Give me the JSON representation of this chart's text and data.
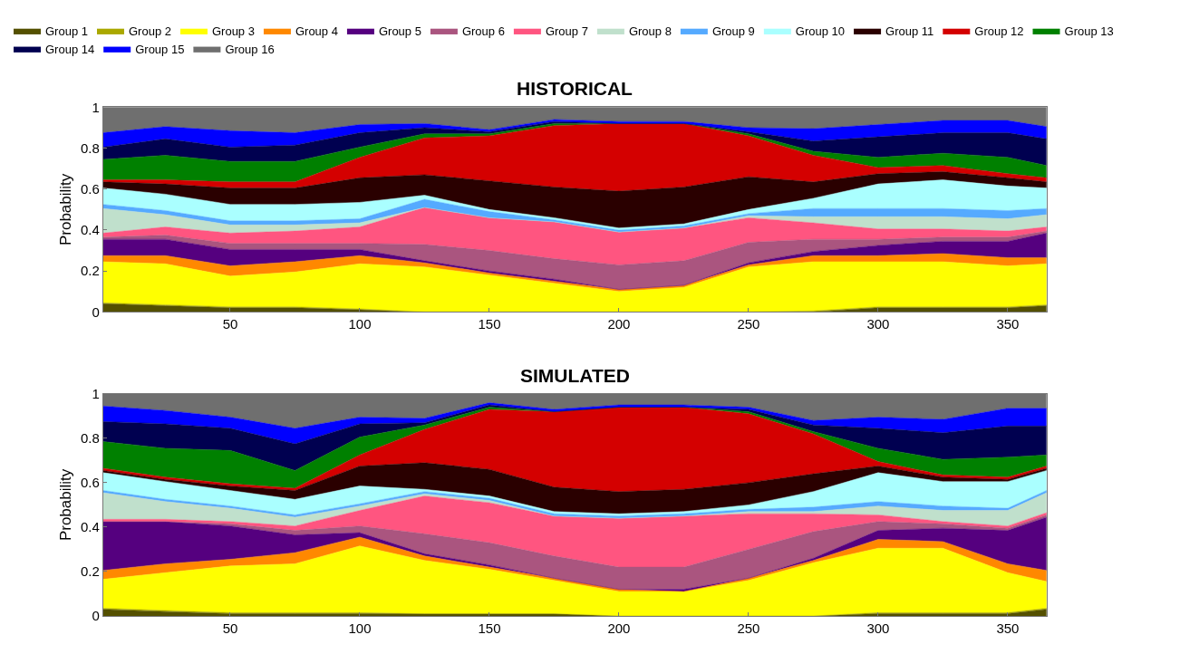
{
  "chart_data": [
    {
      "type": "area",
      "stacked": true,
      "title": "HISTORICAL",
      "ylabel": "Probability",
      "legend": "top",
      "xlim": [
        1,
        365
      ],
      "xticks": [
        50,
        100,
        150,
        200,
        250,
        300,
        350
      ],
      "ylim": [
        0,
        1
      ],
      "yticks": [
        0,
        0.2,
        0.4,
        0.6,
        0.8,
        1
      ],
      "x": [
        1,
        25,
        50,
        75,
        100,
        125,
        150,
        175,
        200,
        225,
        250,
        275,
        300,
        325,
        350,
        365
      ],
      "series": [
        {
          "name": "Group 1",
          "color": "#545000",
          "values": [
            0.04,
            0.03,
            0.02,
            0.02,
            0.01,
            0,
            0,
            0,
            0,
            0,
            0,
            0,
            0.02,
            0.02,
            0.02,
            0.03
          ]
        },
        {
          "name": "Group 2",
          "color": "#aaa800",
          "values": [
            0.005,
            0.005,
            0.005,
            0.005,
            0.005,
            0,
            0,
            0,
            0,
            0,
            0,
            0.005,
            0.005,
            0.005,
            0.005,
            0.005
          ]
        },
        {
          "name": "Group 3",
          "color": "#ffff00",
          "values": [
            0.2,
            0.2,
            0.15,
            0.17,
            0.22,
            0.22,
            0.18,
            0.14,
            0.1,
            0.12,
            0.22,
            0.24,
            0.22,
            0.22,
            0.2,
            0.2
          ]
        },
        {
          "name": "Group 4",
          "color": "#ff8800",
          "values": [
            0.03,
            0.04,
            0.05,
            0.05,
            0.04,
            0.02,
            0.01,
            0.01,
            0.01,
            0.01,
            0.01,
            0.03,
            0.03,
            0.04,
            0.04,
            0.03
          ]
        },
        {
          "name": "Group 5",
          "color": "#55007f",
          "values": [
            0.08,
            0.08,
            0.08,
            0.06,
            0.03,
            0.01,
            0.01,
            0.01,
            0,
            0,
            0.01,
            0.02,
            0.05,
            0.06,
            0.08,
            0.12
          ]
        },
        {
          "name": "Group 6",
          "color": "#aa557f",
          "values": [
            0.01,
            0.02,
            0.03,
            0.03,
            0.03,
            0.08,
            0.1,
            0.1,
            0.12,
            0.12,
            0.1,
            0.06,
            0.03,
            0.02,
            0.02,
            0.01
          ]
        },
        {
          "name": "Group 7",
          "color": "#ff5580",
          "values": [
            0.02,
            0.04,
            0.05,
            0.06,
            0.08,
            0.18,
            0.16,
            0.18,
            0.16,
            0.16,
            0.12,
            0.08,
            0.05,
            0.04,
            0.03,
            0.02
          ]
        },
        {
          "name": "Group 8",
          "color": "#c0e0cc",
          "values": [
            0.12,
            0.06,
            0.04,
            0.03,
            0.02,
            0,
            0,
            0,
            0,
            0,
            0.01,
            0.03,
            0.06,
            0.06,
            0.06,
            0.06
          ]
        },
        {
          "name": "Group 9",
          "color": "#55aaff",
          "values": [
            0.02,
            0.02,
            0.02,
            0.02,
            0.02,
            0.04,
            0.03,
            0.01,
            0.01,
            0.01,
            0.01,
            0.04,
            0.04,
            0.04,
            0.04,
            0.03
          ]
        },
        {
          "name": "Group 10",
          "color": "#aaffff",
          "values": [
            0.08,
            0.08,
            0.08,
            0.08,
            0.08,
            0.02,
            0.01,
            0.01,
            0.01,
            0.01,
            0.02,
            0.05,
            0.12,
            0.14,
            0.12,
            0.1
          ]
        },
        {
          "name": "Group 11",
          "color": "#2a0000",
          "values": [
            0.03,
            0.05,
            0.08,
            0.08,
            0.12,
            0.1,
            0.14,
            0.15,
            0.18,
            0.18,
            0.16,
            0.08,
            0.05,
            0.04,
            0.04,
            0.03
          ]
        },
        {
          "name": "Group 12",
          "color": "#d40000",
          "values": [
            0.01,
            0.02,
            0.03,
            0.03,
            0.1,
            0.18,
            0.22,
            0.3,
            0.33,
            0.31,
            0.2,
            0.13,
            0.03,
            0.03,
            0.02,
            0.02
          ]
        },
        {
          "name": "Group 13",
          "color": "#008000",
          "values": [
            0.1,
            0.12,
            0.1,
            0.1,
            0.05,
            0.02,
            0.01,
            0.01,
            0,
            0,
            0.01,
            0.02,
            0.05,
            0.06,
            0.08,
            0.06
          ]
        },
        {
          "name": "Group 14",
          "color": "#000050",
          "values": [
            0.06,
            0.08,
            0.07,
            0.08,
            0.07,
            0.03,
            0.01,
            0.01,
            0,
            0,
            0.01,
            0.05,
            0.1,
            0.1,
            0.12,
            0.13
          ]
        },
        {
          "name": "Group 15",
          "color": "#0000ff",
          "values": [
            0.07,
            0.06,
            0.08,
            0.06,
            0.04,
            0.02,
            0.01,
            0.01,
            0.01,
            0.01,
            0.02,
            0.06,
            0.06,
            0.06,
            0.06,
            0.06
          ]
        },
        {
          "name": "Group 16",
          "color": "#6f6f6f",
          "values": [
            0.125,
            0.095,
            0.115,
            0.125,
            0.085,
            0.08,
            0.11,
            0.06,
            0.07,
            0.07,
            0.1,
            0.105,
            0.085,
            0.065,
            0.065,
            0.095
          ]
        }
      ]
    },
    {
      "type": "area",
      "stacked": true,
      "title": "SIMULATED",
      "ylabel": "Probability",
      "legend": false,
      "xlim": [
        1,
        365
      ],
      "xticks": [
        50,
        100,
        150,
        200,
        250,
        300,
        350
      ],
      "ylim": [
        0,
        1
      ],
      "yticks": [
        0,
        0.2,
        0.4,
        0.6,
        0.8,
        1
      ],
      "x": [
        1,
        25,
        50,
        75,
        100,
        125,
        150,
        175,
        200,
        225,
        250,
        275,
        300,
        325,
        350,
        365
      ],
      "series": [
        {
          "color": "#545000",
          "values": [
            0.03,
            0.02,
            0.01,
            0.01,
            0.01,
            0.01,
            0.01,
            0.01,
            0,
            0,
            0,
            0,
            0.01,
            0.01,
            0.01,
            0.03
          ]
        },
        {
          "color": "#aaa800",
          "values": [
            0.005,
            0.005,
            0.005,
            0.005,
            0.005,
            0,
            0,
            0,
            0,
            0,
            0,
            0,
            0.005,
            0.005,
            0.005,
            0.005
          ]
        },
        {
          "color": "#ffff00",
          "values": [
            0.13,
            0.17,
            0.21,
            0.22,
            0.3,
            0.24,
            0.2,
            0.15,
            0.11,
            0.11,
            0.16,
            0.24,
            0.29,
            0.29,
            0.18,
            0.12
          ]
        },
        {
          "color": "#ff8800",
          "values": [
            0.04,
            0.04,
            0.03,
            0.05,
            0.04,
            0.02,
            0.01,
            0.01,
            0.01,
            0,
            0.01,
            0.01,
            0.04,
            0.03,
            0.04,
            0.05
          ]
        },
        {
          "color": "#55007f",
          "values": [
            0.22,
            0.19,
            0.15,
            0.08,
            0.02,
            0.01,
            0.01,
            0,
            0,
            0.01,
            0,
            0.01,
            0.04,
            0.06,
            0.15,
            0.24
          ]
        },
        {
          "color": "#aa557f",
          "values": [
            0,
            0,
            0.01,
            0.02,
            0.03,
            0.09,
            0.1,
            0.1,
            0.1,
            0.1,
            0.13,
            0.12,
            0.04,
            0.02,
            0.01,
            0.01
          ]
        },
        {
          "color": "#ff5580",
          "values": [
            0.01,
            0.01,
            0.01,
            0.02,
            0.07,
            0.17,
            0.18,
            0.18,
            0.22,
            0.23,
            0.16,
            0.08,
            0.03,
            0.01,
            0.01,
            0.01
          ]
        },
        {
          "color": "#c0e0cc",
          "values": [
            0.12,
            0.08,
            0.06,
            0.04,
            0.02,
            0.01,
            0.01,
            0,
            0,
            0,
            0.01,
            0.01,
            0.04,
            0.05,
            0.07,
            0.09
          ]
        },
        {
          "color": "#55aaff",
          "values": [
            0.01,
            0.01,
            0.01,
            0.01,
            0.01,
            0.01,
            0.01,
            0.01,
            0.01,
            0.01,
            0.01,
            0.02,
            0.02,
            0.02,
            0.01,
            0.01
          ]
        },
        {
          "color": "#aaffff",
          "values": [
            0.08,
            0.08,
            0.07,
            0.07,
            0.08,
            0.01,
            0.01,
            0.01,
            0.01,
            0.01,
            0.02,
            0.07,
            0.13,
            0.11,
            0.12,
            0.09
          ]
        },
        {
          "color": "#2a0000",
          "values": [
            0.01,
            0.01,
            0.02,
            0.04,
            0.09,
            0.12,
            0.12,
            0.11,
            0.1,
            0.1,
            0.1,
            0.08,
            0.03,
            0.02,
            0.01,
            0.01
          ]
        },
        {
          "color": "#d40000",
          "values": [
            0.01,
            0.01,
            0.01,
            0.01,
            0.05,
            0.15,
            0.27,
            0.34,
            0.38,
            0.37,
            0.31,
            0.18,
            0.02,
            0.01,
            0.01,
            0.01
          ]
        },
        {
          "color": "#008000",
          "values": [
            0.12,
            0.13,
            0.15,
            0.08,
            0.08,
            0.02,
            0.01,
            0,
            0,
            0,
            0.01,
            0.01,
            0.06,
            0.07,
            0.09,
            0.05
          ]
        },
        {
          "color": "#000050",
          "values": [
            0.09,
            0.11,
            0.1,
            0.12,
            0.06,
            0.01,
            0.01,
            0,
            0,
            0,
            0.01,
            0.03,
            0.09,
            0.12,
            0.14,
            0.13
          ]
        },
        {
          "color": "#0000ff",
          "values": [
            0.07,
            0.06,
            0.05,
            0.07,
            0.03,
            0.02,
            0.01,
            0.01,
            0.01,
            0.01,
            0.01,
            0.02,
            0.05,
            0.06,
            0.08,
            0.08
          ]
        },
        {
          "color": "#6f6f6f",
          "values": [
            0.055,
            0.075,
            0.105,
            0.155,
            0.105,
            0.11,
            0.04,
            0.07,
            0.05,
            0.05,
            0.06,
            0.12,
            0.105,
            0.115,
            0.065,
            0.065
          ]
        }
      ]
    }
  ]
}
